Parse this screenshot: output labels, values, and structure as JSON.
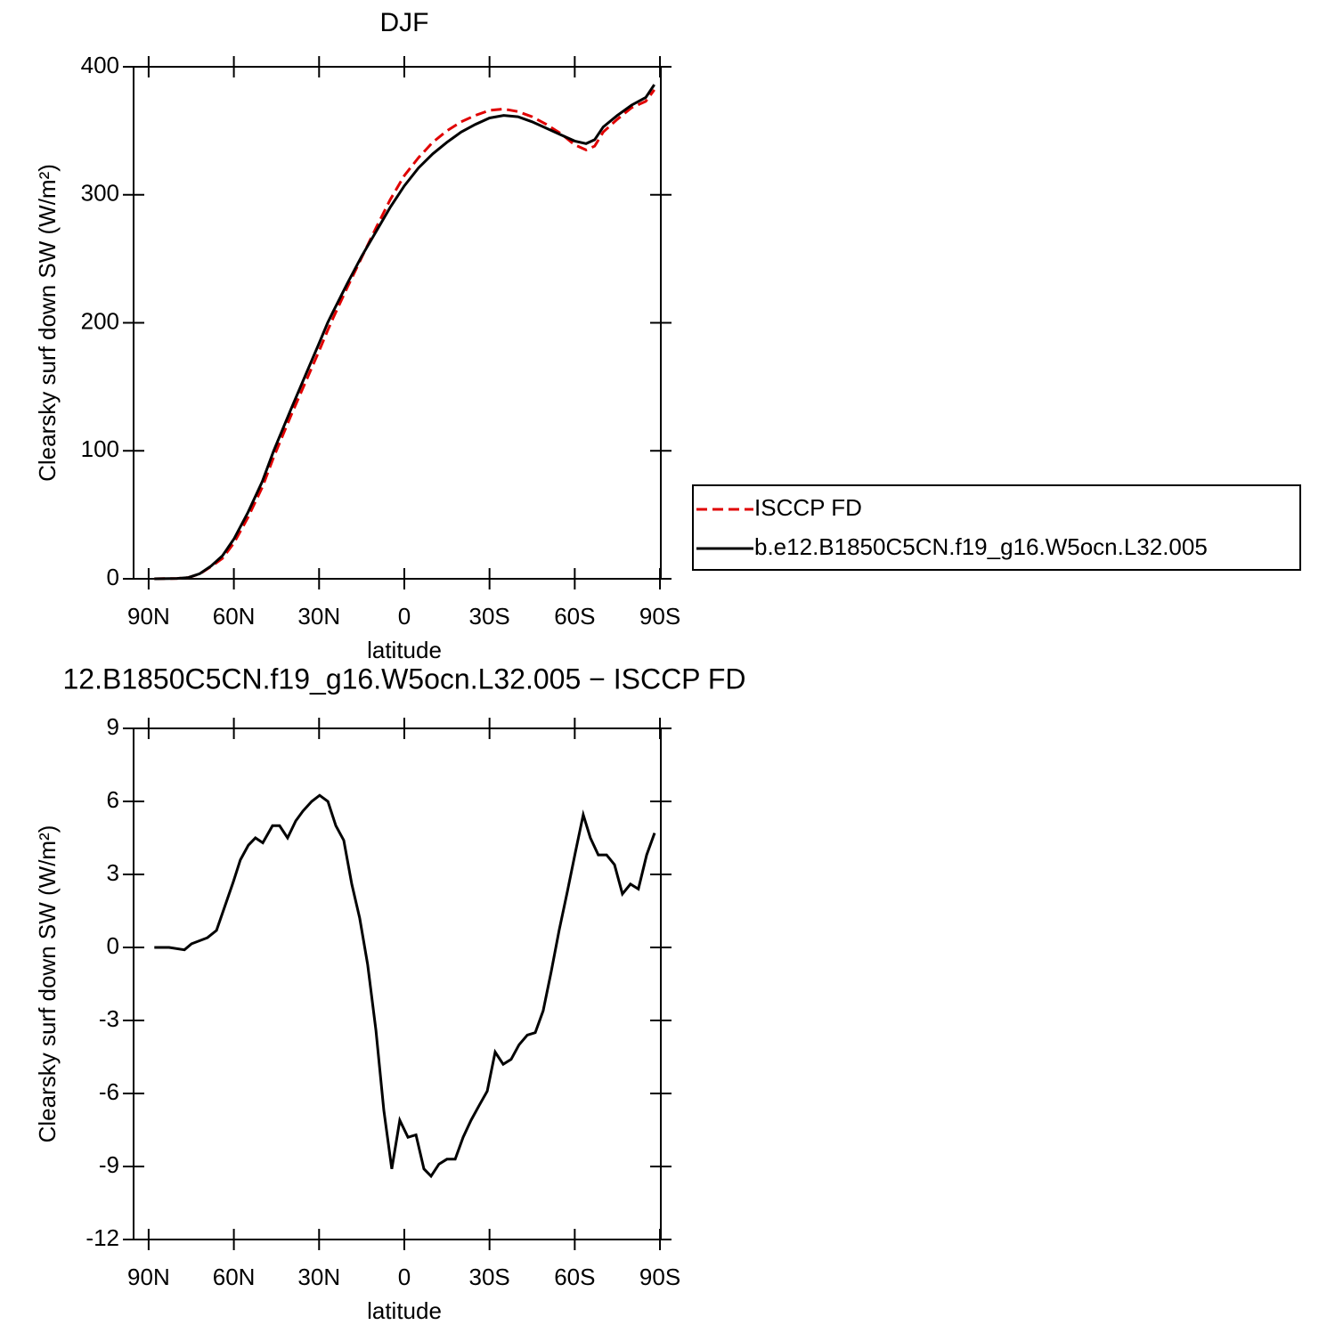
{
  "chart_data": [
    {
      "type": "line",
      "title": "DJF",
      "xlabel": "latitude",
      "ylabel": "Clearsky surf down SW (W/m²)",
      "x": [
        88,
        80,
        76,
        72,
        68,
        64,
        60,
        55,
        50,
        46,
        40,
        35,
        30,
        27,
        25,
        20,
        15,
        10,
        5,
        0,
        -5,
        -10,
        -15,
        -20,
        -25,
        -30,
        -35,
        -40,
        -45,
        -50,
        -55,
        -60,
        -64,
        -67,
        -70,
        -75,
        -80,
        -85,
        -88
      ],
      "series": [
        {
          "name": "ISCCP FD",
          "color": "#e00000",
          "linestyle": "dashed",
          "values": [
            0,
            0.3,
            1,
            3.8,
            9.6,
            16,
            28,
            48,
            71.5,
            95,
            127,
            152.5,
            178,
            194,
            204,
            228,
            251,
            274,
            296,
            315,
            329,
            341,
            350,
            357,
            362,
            366,
            367,
            365,
            361,
            355,
            348,
            339,
            335,
            338,
            349,
            359,
            368,
            373,
            382
          ]
        },
        {
          "name": "b.e12.B1850C5CN.f19_g16.W5ocn.L32.005",
          "color": "#000000",
          "linestyle": "solid",
          "values": [
            0,
            0.3,
            1,
            4,
            10,
            18,
            31,
            52,
            76,
            100,
            132,
            158,
            184,
            200,
            209,
            231,
            252,
            271,
            290,
            307,
            321,
            332,
            341,
            349,
            355,
            360,
            362,
            361,
            357,
            352,
            347,
            342,
            340,
            343,
            353,
            362,
            370,
            376,
            386
          ]
        }
      ],
      "xlim": [
        95.3,
        -90.3
      ],
      "ylim": [
        0,
        400
      ],
      "xticks": [
        {
          "value": 90,
          "label": "90N"
        },
        {
          "value": 60,
          "label": "60N"
        },
        {
          "value": 30,
          "label": "30N"
        },
        0,
        {
          "value": -30,
          "label": "30S"
        },
        {
          "value": -60,
          "label": "60S"
        },
        {
          "value": -90,
          "label": "90S"
        }
      ],
      "yticks": [
        0,
        100,
        200,
        300,
        400
      ],
      "legend": true
    },
    {
      "type": "line",
      "title": "12.B1850C5CN.f19_g16.W5ocn.L32.005 − ISCCP FD",
      "xlabel": "latitude",
      "ylabel": "Clearsky surf down SW (W/m²)",
      "x": [
        88,
        82.8,
        77.4,
        74.9,
        69.3,
        66.1,
        60.2,
        57.7,
        54.9,
        52.4,
        49.8,
        46.4,
        43.9,
        41.1,
        38.2,
        35.7,
        32.6,
        29.8,
        26.9,
        24.1,
        21.3,
        18.5,
        15.7,
        12.9,
        10,
        7.2,
        4.4,
        1.6,
        -1.3,
        -4.1,
        -6.9,
        -9.4,
        -12.2,
        -15,
        -17.9,
        -20.7,
        -23.5,
        -26.3,
        -29.2,
        -32,
        -34.8,
        -37.6,
        -40.4,
        -43.3,
        -46.1,
        -48.9,
        -51.7,
        -54.5,
        -57.4,
        -60.2,
        -63,
        -65.5,
        -68.3,
        -71.2,
        -74,
        -76.8,
        -79.6,
        -82.4,
        -85.3,
        -88.1
      ],
      "series": [
        {
          "name": null,
          "color": "#000000",
          "linestyle": "solid",
          "values": [
            0,
            0,
            -0.1,
            0.15,
            0.4,
            0.7,
            2.7,
            3.6,
            4.2,
            4.5,
            4.3,
            5.0,
            5.0,
            4.5,
            5.2,
            5.6,
            6.0,
            6.25,
            6.0,
            5.0,
            4.4,
            2.6,
            1.2,
            -0.7,
            -3.4,
            -6.7,
            -9.1,
            -7.1,
            -7.8,
            -7.7,
            -9.1,
            -9.4,
            -8.9,
            -8.7,
            -8.7,
            -7.8,
            -7.1,
            -6.5,
            -5.9,
            -4.3,
            -4.8,
            -4.6,
            -4.0,
            -3.6,
            -3.5,
            -2.6,
            -1.0,
            0.7,
            2.3,
            3.9,
            5.45,
            4.5,
            3.8,
            3.8,
            3.4,
            2.2,
            2.6,
            2.4,
            3.8,
            4.7
          ]
        }
      ],
      "xlim": [
        95.3,
        -90.3
      ],
      "ylim": [
        -12,
        9
      ],
      "xticks": [
        {
          "value": 90,
          "label": "90N"
        },
        {
          "value": 60,
          "label": "60N"
        },
        {
          "value": 30,
          "label": "30N"
        },
        0,
        {
          "value": -30,
          "label": "30S"
        },
        {
          "value": -60,
          "label": "60S"
        },
        {
          "value": -90,
          "label": "90S"
        }
      ],
      "yticks": [
        -12,
        -9,
        -6,
        -3,
        0,
        3,
        6,
        9
      ],
      "legend": false
    }
  ]
}
